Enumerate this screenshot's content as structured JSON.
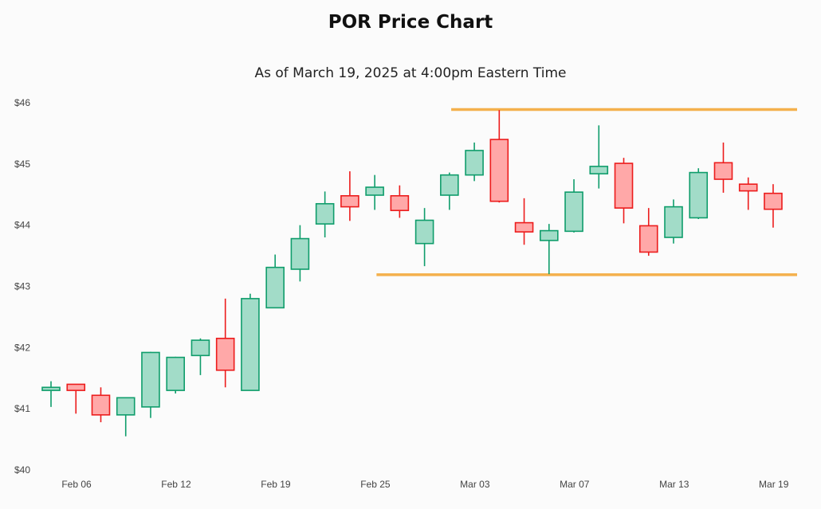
{
  "chart_data": {
    "type": "candlestick",
    "title": "POR Price Chart",
    "subtitle": "As of March 19, 2025 at 4:00pm Eastern Time",
    "xlabel": "",
    "ylabel": "",
    "ylim": [
      40,
      46
    ],
    "y_ticks": [
      {
        "value": 46,
        "label": "$46"
      },
      {
        "value": 45,
        "label": "$45"
      },
      {
        "value": 44,
        "label": "$44"
      },
      {
        "value": 43,
        "label": "$43"
      },
      {
        "value": 42,
        "label": "$42"
      },
      {
        "value": 41,
        "label": "$41"
      },
      {
        "value": 40,
        "label": "$40"
      }
    ],
    "x_ticks": [
      {
        "index": 0,
        "label": "Feb 06"
      },
      {
        "index": 4,
        "label": "Feb 12"
      },
      {
        "index": 8,
        "label": "Feb 19"
      },
      {
        "index": 12,
        "label": "Feb 25"
      },
      {
        "index": 16,
        "label": "Mar 03"
      },
      {
        "index": 20,
        "label": "Mar 07"
      },
      {
        "index": 24,
        "label": "Mar 13"
      },
      {
        "index": 28,
        "label": "Mar 19"
      }
    ],
    "grid": false,
    "legend": "none",
    "colors": {
      "up_fill": "#a2dcc8",
      "up_stroke": "#0f9d6b",
      "down_fill": "#ffa8a8",
      "down_stroke": "#ec1c1c",
      "level_line": "#f4b04c"
    },
    "candles": [
      {
        "date": "Feb 05",
        "open": 41.3,
        "high": 41.45,
        "low": 41.03,
        "close": 41.35
      },
      {
        "date": "Feb 06",
        "open": 41.4,
        "high": 41.4,
        "low": 40.92,
        "close": 41.3
      },
      {
        "date": "Feb 07",
        "open": 41.22,
        "high": 41.35,
        "low": 40.78,
        "close": 40.9
      },
      {
        "date": "Feb 10",
        "open": 40.9,
        "high": 41.18,
        "low": 40.55,
        "close": 41.18
      },
      {
        "date": "Feb 11",
        "open": 41.03,
        "high": 41.93,
        "low": 40.85,
        "close": 41.92
      },
      {
        "date": "Feb 12",
        "open": 41.3,
        "high": 41.85,
        "low": 41.25,
        "close": 41.84
      },
      {
        "date": "Feb 13",
        "open": 41.87,
        "high": 42.15,
        "low": 41.55,
        "close": 42.12
      },
      {
        "date": "Feb 14",
        "open": 42.15,
        "high": 42.8,
        "low": 41.35,
        "close": 41.63
      },
      {
        "date": "Feb 18",
        "open": 41.3,
        "high": 42.88,
        "low": 41.3,
        "close": 42.8
      },
      {
        "date": "Feb 19",
        "open": 42.65,
        "high": 43.52,
        "low": 42.65,
        "close": 43.31
      },
      {
        "date": "Feb 20",
        "open": 43.28,
        "high": 44.0,
        "low": 43.08,
        "close": 43.78
      },
      {
        "date": "Feb 21",
        "open": 44.02,
        "high": 44.55,
        "low": 43.8,
        "close": 44.35
      },
      {
        "date": "Feb 24",
        "open": 44.48,
        "high": 44.88,
        "low": 44.07,
        "close": 44.3
      },
      {
        "date": "Feb 25",
        "open": 44.49,
        "high": 44.82,
        "low": 44.25,
        "close": 44.62
      },
      {
        "date": "Feb 26",
        "open": 44.48,
        "high": 44.65,
        "low": 44.12,
        "close": 44.24
      },
      {
        "date": "Feb 27",
        "open": 43.7,
        "high": 44.28,
        "low": 43.33,
        "close": 44.08
      },
      {
        "date": "Feb 28",
        "open": 44.49,
        "high": 44.86,
        "low": 44.25,
        "close": 44.82
      },
      {
        "date": "Mar 03",
        "open": 44.82,
        "high": 45.35,
        "low": 44.72,
        "close": 45.22
      },
      {
        "date": "Mar 04",
        "open": 45.4,
        "high": 45.88,
        "low": 44.37,
        "close": 44.39
      },
      {
        "date": "Mar 05",
        "open": 44.04,
        "high": 44.44,
        "low": 43.68,
        "close": 43.89
      },
      {
        "date": "Mar 06",
        "open": 43.75,
        "high": 44.02,
        "low": 43.2,
        "close": 43.91
      },
      {
        "date": "Mar 07",
        "open": 43.9,
        "high": 44.75,
        "low": 43.88,
        "close": 44.54
      },
      {
        "date": "Mar 10",
        "open": 44.84,
        "high": 45.63,
        "low": 44.6,
        "close": 44.96
      },
      {
        "date": "Mar 11",
        "open": 45.01,
        "high": 45.1,
        "low": 44.03,
        "close": 44.28
      },
      {
        "date": "Mar 12",
        "open": 43.99,
        "high": 44.28,
        "low": 43.5,
        "close": 43.56
      },
      {
        "date": "Mar 13",
        "open": 43.8,
        "high": 44.42,
        "low": 43.7,
        "close": 44.3
      },
      {
        "date": "Mar 14",
        "open": 44.12,
        "high": 44.93,
        "low": 44.1,
        "close": 44.86
      },
      {
        "date": "Mar 17",
        "open": 45.02,
        "high": 45.35,
        "low": 44.53,
        "close": 44.75
      },
      {
        "date": "Mar 18",
        "open": 44.67,
        "high": 44.78,
        "low": 44.25,
        "close": 44.56
      },
      {
        "date": "Mar 19",
        "open": 44.52,
        "high": 44.67,
        "low": 43.96,
        "close": 44.26
      }
    ],
    "level_lines": [
      {
        "value": 45.89,
        "from_index": 17
      },
      {
        "value": 43.19,
        "from_index": 14
      }
    ]
  }
}
